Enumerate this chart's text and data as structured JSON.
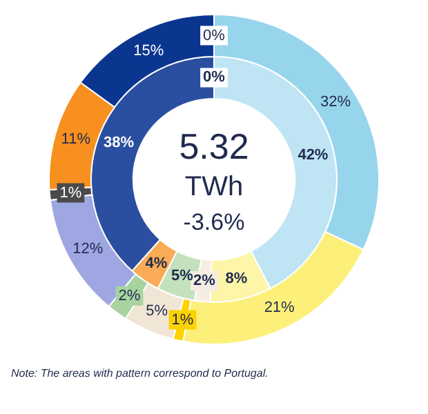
{
  "chart_data": {
    "type": "donut",
    "categories": [
      null,
      null,
      null,
      null,
      null,
      null,
      null,
      null,
      null,
      null
    ],
    "series": [
      {
        "values": [
          0,
          32,
          21,
          1,
          5,
          2,
          12,
          1,
          11,
          15
        ],
        "colors": [
          "#7f7f7f",
          "#97d5ec",
          "#fdf07a",
          "#fcd200",
          "#f1e6d6",
          "#a8d3a0",
          "#9fa7e2",
          "#4a4a4a",
          "#f7901e",
          "#0a3690"
        ],
        "value_labels": [
          "0%",
          "32%",
          "21%",
          "1%",
          "5%",
          "2%",
          "12%",
          "1%",
          "11%",
          "15%"
        ]
      },
      {
        "values": [
          0,
          42,
          8,
          0,
          2,
          5,
          0,
          0,
          4,
          38
        ],
        "colors": [
          "#7f7f7f",
          "#bfe5f4",
          "#fdf5a8",
          "#fcd200",
          "#f5ede2",
          "#c4e1bd",
          "#9fa7e2",
          "#4a4a4a",
          "#f9ab55",
          "#2a4fa0"
        ],
        "value_labels": [
          "0%",
          "42%",
          "8%",
          null,
          "2%",
          "5%",
          null,
          null,
          "4%",
          "38%"
        ]
      }
    ],
    "annotations": [
      "5.32",
      "TWh",
      "-3.6%",
      "Note: The  areas with pattern correspond  to Portugal."
    ]
  }
}
